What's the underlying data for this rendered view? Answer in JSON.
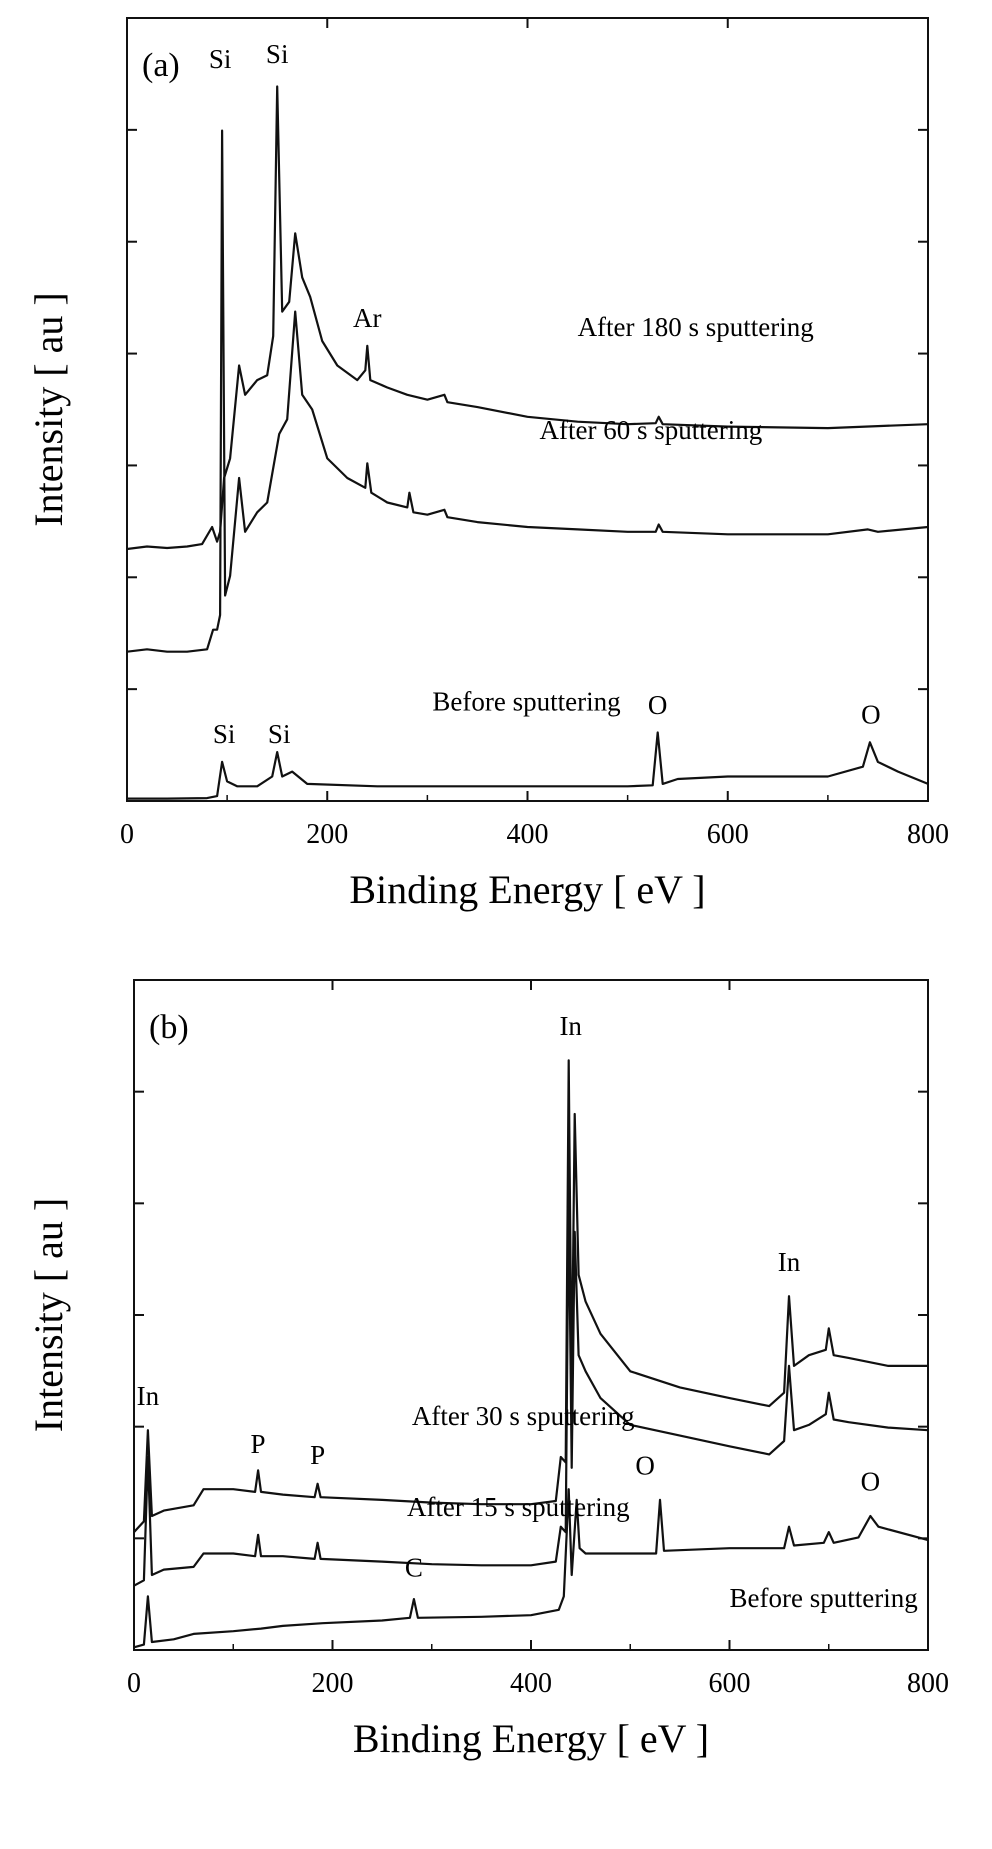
{
  "chart_data": [
    {
      "type": "line",
      "panel_label": "(a)",
      "xlabel": "Binding Energy [ eV ]",
      "ylabel": "Intensity [ au ]",
      "xlim": [
        0,
        800
      ],
      "xticks": [
        0,
        200,
        400,
        600,
        800
      ],
      "y_units": "arbitrary",
      "grid": false,
      "series": [
        {
          "name": "After 180 s sputtering",
          "points": [
            [
              0,
              5.15
            ],
            [
              20,
              5.2
            ],
            [
              40,
              5.17
            ],
            [
              60,
              5.2
            ],
            [
              75,
              5.25
            ],
            [
              85,
              5.6
            ],
            [
              90,
              5.3
            ],
            [
              93,
              5.5
            ],
            [
              97,
              6.6
            ],
            [
              103,
              7.0
            ],
            [
              112,
              8.9
            ],
            [
              118,
              8.3
            ],
            [
              130,
              8.6
            ],
            [
              140,
              8.7
            ],
            [
              146,
              9.5
            ],
            [
              150,
              14.6
            ],
            [
              155,
              10.0
            ],
            [
              162,
              10.2
            ],
            [
              168,
              11.6
            ],
            [
              175,
              10.7
            ],
            [
              183,
              10.3
            ],
            [
              195,
              9.4
            ],
            [
              210,
              8.9
            ],
            [
              230,
              8.6
            ],
            [
              238,
              8.8
            ],
            [
              240,
              9.3
            ],
            [
              243,
              8.6
            ],
            [
              260,
              8.45
            ],
            [
              280,
              8.3
            ],
            [
              300,
              8.2
            ],
            [
              317,
              8.3
            ],
            [
              320,
              8.15
            ],
            [
              350,
              8.05
            ],
            [
              400,
              7.85
            ],
            [
              450,
              7.75
            ],
            [
              500,
              7.7
            ],
            [
              528,
              7.72
            ],
            [
              531,
              7.85
            ],
            [
              535,
              7.7
            ],
            [
              600,
              7.65
            ],
            [
              700,
              7.62
            ],
            [
              750,
              7.66
            ],
            [
              800,
              7.7
            ]
          ]
        },
        {
          "name": "After 60 s sputtering",
          "points": [
            [
              0,
              3.05
            ],
            [
              20,
              3.1
            ],
            [
              40,
              3.05
            ],
            [
              60,
              3.05
            ],
            [
              80,
              3.1
            ],
            [
              86,
              3.5
            ],
            [
              90,
              3.5
            ],
            [
              93,
              3.8
            ],
            [
              95,
              13.7
            ],
            [
              98,
              4.2
            ],
            [
              103,
              4.6
            ],
            [
              112,
              6.6
            ],
            [
              118,
              5.5
            ],
            [
              130,
              5.9
            ],
            [
              140,
              6.1
            ],
            [
              146,
              6.8
            ],
            [
              152,
              7.5
            ],
            [
              160,
              7.8
            ],
            [
              168,
              10.0
            ],
            [
              175,
              8.3
            ],
            [
              185,
              8.0
            ],
            [
              200,
              7.0
            ],
            [
              220,
              6.6
            ],
            [
              238,
              6.4
            ],
            [
              240,
              6.9
            ],
            [
              244,
              6.3
            ],
            [
              260,
              6.1
            ],
            [
              280,
              6.0
            ],
            [
              282,
              6.3
            ],
            [
              286,
              5.9
            ],
            [
              300,
              5.85
            ],
            [
              317,
              5.95
            ],
            [
              320,
              5.8
            ],
            [
              350,
              5.7
            ],
            [
              400,
              5.6
            ],
            [
              450,
              5.55
            ],
            [
              500,
              5.5
            ],
            [
              528,
              5.5
            ],
            [
              531,
              5.65
            ],
            [
              535,
              5.5
            ],
            [
              600,
              5.45
            ],
            [
              700,
              5.45
            ],
            [
              740,
              5.55
            ],
            [
              750,
              5.5
            ],
            [
              800,
              5.6
            ]
          ]
        },
        {
          "name": "Before sputtering",
          "points": [
            [
              0,
              0.05
            ],
            [
              40,
              0.05
            ],
            [
              80,
              0.06
            ],
            [
              90,
              0.1
            ],
            [
              95,
              0.8
            ],
            [
              100,
              0.4
            ],
            [
              110,
              0.3
            ],
            [
              130,
              0.3
            ],
            [
              145,
              0.5
            ],
            [
              150,
              1.0
            ],
            [
              155,
              0.5
            ],
            [
              165,
              0.6
            ],
            [
              180,
              0.35
            ],
            [
              250,
              0.3
            ],
            [
              300,
              0.3
            ],
            [
              400,
              0.3
            ],
            [
              500,
              0.3
            ],
            [
              525,
              0.32
            ],
            [
              530,
              1.4
            ],
            [
              535,
              0.35
            ],
            [
              550,
              0.45
            ],
            [
              600,
              0.5
            ],
            [
              700,
              0.5
            ],
            [
              735,
              0.7
            ],
            [
              742,
              1.2
            ],
            [
              750,
              0.8
            ],
            [
              770,
              0.6
            ],
            [
              800,
              0.35
            ]
          ]
        }
      ],
      "peak_labels": [
        {
          "text": "Si",
          "x": 93,
          "y": 14.9
        },
        {
          "text": "Si",
          "x": 150,
          "y": 15.0
        },
        {
          "text": "Ar",
          "x": 240,
          "y": 9.6
        },
        {
          "text": "O",
          "x": 530,
          "y": 1.7
        },
        {
          "text": "O",
          "x": 743,
          "y": 1.5
        },
        {
          "text": "Si",
          "x": 97,
          "y": 1.1
        },
        {
          "text": "Si",
          "x": 152,
          "y": 1.1
        }
      ],
      "curve_labels": [
        {
          "text": "After 180 s sputtering",
          "x": 450,
          "y": 9.5
        },
        {
          "text": "After 60 s sputtering",
          "x": 412,
          "y": 7.4
        },
        {
          "text": "Before sputtering",
          "x": 305,
          "y": 1.85
        }
      ]
    },
    {
      "type": "line",
      "panel_label": "(b)",
      "xlabel": "Binding Energy [ eV ]",
      "ylabel": "Intensity [ au ]",
      "xlim": [
        0,
        800
      ],
      "xticks": [
        0,
        200,
        400,
        600,
        800
      ],
      "y_units": "arbitrary",
      "grid": false,
      "series": [
        {
          "name": "After 30 s sputtering",
          "points": [
            [
              0,
              2.2
            ],
            [
              10,
              2.4
            ],
            [
              14,
              4.1
            ],
            [
              18,
              2.5
            ],
            [
              30,
              2.6
            ],
            [
              60,
              2.7
            ],
            [
              70,
              3.0
            ],
            [
              100,
              3.0
            ],
            [
              122,
              2.95
            ],
            [
              125,
              3.35
            ],
            [
              128,
              2.95
            ],
            [
              150,
              2.9
            ],
            [
              182,
              2.85
            ],
            [
              185,
              3.1
            ],
            [
              188,
              2.85
            ],
            [
              250,
              2.8
            ],
            [
              300,
              2.75
            ],
            [
              350,
              2.72
            ],
            [
              400,
              2.72
            ],
            [
              425,
              2.78
            ],
            [
              430,
              3.6
            ],
            [
              435,
              3.5
            ],
            [
              438,
              11.0
            ],
            [
              441,
              4.8
            ],
            [
              444,
              10.0
            ],
            [
              448,
              7.0
            ],
            [
              455,
              6.5
            ],
            [
              470,
              5.9
            ],
            [
              500,
              5.2
            ],
            [
              550,
              4.9
            ],
            [
              600,
              4.7
            ],
            [
              640,
              4.55
            ],
            [
              655,
              4.8
            ],
            [
              660,
              6.6
            ],
            [
              665,
              5.3
            ],
            [
              680,
              5.5
            ],
            [
              697,
              5.6
            ],
            [
              700,
              6.0
            ],
            [
              705,
              5.5
            ],
            [
              720,
              5.45
            ],
            [
              760,
              5.3
            ],
            [
              800,
              5.3
            ]
          ]
        },
        {
          "name": "After 15 s sputtering",
          "points": [
            [
              0,
              1.2
            ],
            [
              10,
              1.3
            ],
            [
              14,
              3.6
            ],
            [
              18,
              1.4
            ],
            [
              30,
              1.5
            ],
            [
              60,
              1.55
            ],
            [
              70,
              1.8
            ],
            [
              100,
              1.8
            ],
            [
              122,
              1.75
            ],
            [
              125,
              2.15
            ],
            [
              128,
              1.75
            ],
            [
              150,
              1.75
            ],
            [
              182,
              1.7
            ],
            [
              185,
              2.0
            ],
            [
              188,
              1.7
            ],
            [
              250,
              1.65
            ],
            [
              300,
              1.6
            ],
            [
              350,
              1.58
            ],
            [
              400,
              1.58
            ],
            [
              425,
              1.65
            ],
            [
              430,
              2.3
            ],
            [
              435,
              2.2
            ],
            [
              438,
              8.5
            ],
            [
              441,
              3.4
            ],
            [
              444,
              7.8
            ],
            [
              448,
              5.5
            ],
            [
              455,
              5.2
            ],
            [
              470,
              4.7
            ],
            [
              500,
              4.2
            ],
            [
              550,
              4.0
            ],
            [
              600,
              3.8
            ],
            [
              640,
              3.65
            ],
            [
              655,
              3.9
            ],
            [
              660,
              5.3
            ],
            [
              665,
              4.1
            ],
            [
              680,
              4.2
            ],
            [
              697,
              4.4
            ],
            [
              700,
              4.8
            ],
            [
              705,
              4.3
            ],
            [
              720,
              4.25
            ],
            [
              760,
              4.15
            ],
            [
              800,
              4.1
            ]
          ]
        },
        {
          "name": "Before sputtering",
          "points": [
            [
              0,
              0.05
            ],
            [
              10,
              0.1
            ],
            [
              14,
              1.0
            ],
            [
              18,
              0.15
            ],
            [
              40,
              0.2
            ],
            [
              60,
              0.3
            ],
            [
              100,
              0.35
            ],
            [
              128,
              0.4
            ],
            [
              150,
              0.45
            ],
            [
              190,
              0.5
            ],
            [
              250,
              0.55
            ],
            [
              278,
              0.6
            ],
            [
              282,
              0.95
            ],
            [
              286,
              0.6
            ],
            [
              350,
              0.62
            ],
            [
              400,
              0.65
            ],
            [
              428,
              0.75
            ],
            [
              433,
              1.0
            ],
            [
              438,
              3.0
            ],
            [
              441,
              1.4
            ],
            [
              446,
              2.8
            ],
            [
              449,
              1.9
            ],
            [
              455,
              1.8
            ],
            [
              500,
              1.8
            ],
            [
              526,
              1.8
            ],
            [
              530,
              2.8
            ],
            [
              534,
              1.85
            ],
            [
              600,
              1.9
            ],
            [
              655,
              1.9
            ],
            [
              660,
              2.3
            ],
            [
              665,
              1.95
            ],
            [
              695,
              2.0
            ],
            [
              700,
              2.2
            ],
            [
              705,
              2.0
            ],
            [
              730,
              2.1
            ],
            [
              742,
              2.5
            ],
            [
              750,
              2.3
            ],
            [
              800,
              2.05
            ]
          ]
        }
      ],
      "peak_labels": [
        {
          "text": "In",
          "x": 440,
          "y": 11.4
        },
        {
          "text": "In",
          "x": 660,
          "y": 7.0
        },
        {
          "text": "In",
          "x": 14,
          "y": 4.5
        },
        {
          "text": "P",
          "x": 125,
          "y": 3.6
        },
        {
          "text": "P",
          "x": 185,
          "y": 3.4
        },
        {
          "text": "O",
          "x": 515,
          "y": 3.2
        },
        {
          "text": "O",
          "x": 742,
          "y": 2.9
        },
        {
          "text": "C",
          "x": 282,
          "y": 1.3
        }
      ],
      "curve_labels": [
        {
          "text": "After 30 s sputtering",
          "x": 280,
          "y": 4.2
        },
        {
          "text": "After 15 s sputtering",
          "x": 275,
          "y": 2.5
        },
        {
          "text": "Before sputtering",
          "x": 600,
          "y": 0.8
        }
      ]
    }
  ]
}
